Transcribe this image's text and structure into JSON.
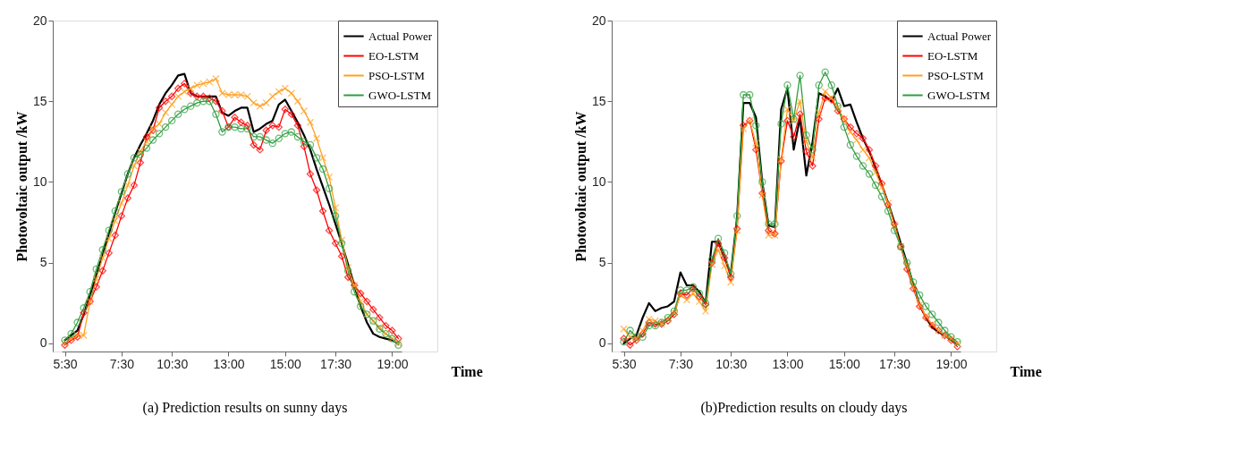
{
  "chart_data": [
    {
      "type": "line",
      "title": "(a) Prediction results on sunny days",
      "xlabel": "Time",
      "ylabel": "Photovoltaic output /kW",
      "categories": [
        "5:30",
        null,
        null,
        null,
        null,
        null,
        null,
        null,
        null,
        "7:30",
        null,
        null,
        null,
        null,
        null,
        null,
        null,
        "10:30",
        null,
        null,
        null,
        null,
        null,
        null,
        null,
        null,
        "13:00",
        null,
        null,
        null,
        null,
        null,
        null,
        null,
        null,
        "15:00",
        null,
        null,
        null,
        null,
        null,
        null,
        null,
        "17:30",
        null,
        null,
        null,
        null,
        null,
        null,
        null,
        null,
        "19:00",
        null
      ],
      "ylim": [
        -0.5,
        20
      ],
      "yticks": [
        0,
        5,
        10,
        15,
        20
      ],
      "grid": false,
      "legend": "top right",
      "line_style": "solid",
      "series": [
        {
          "name": "Actual Power",
          "color": "#000000",
          "marker": "none",
          "values": [
            0.2,
            0.5,
            0.8,
            1.8,
            3.0,
            4.2,
            5.5,
            6.8,
            8.1,
            9.3,
            10.5,
            11.5,
            12.3,
            13.0,
            13.8,
            14.8,
            15.5,
            16.0,
            16.6,
            16.7,
            15.5,
            15.3,
            15.3,
            15.3,
            15.3,
            14.3,
            14.1,
            14.4,
            14.6,
            14.6,
            13.1,
            13.3,
            13.6,
            13.8,
            14.8,
            15.1,
            14.4,
            13.7,
            12.9,
            12.0,
            10.8,
            9.7,
            8.6,
            7.4,
            6.2,
            4.9,
            3.6,
            2.3,
            1.3,
            0.6,
            0.4,
            0.3,
            0.2,
            0.0
          ]
        },
        {
          "name": "EO-LSTM",
          "color": "#ff0000",
          "marker": "diamond",
          "values": [
            -0.1,
            0.2,
            0.4,
            1.9,
            2.6,
            3.5,
            4.5,
            5.6,
            6.7,
            7.9,
            9.0,
            9.8,
            11.2,
            12.8,
            13.2,
            14.6,
            15.0,
            15.3,
            15.8,
            16.1,
            15.5,
            15.3,
            15.3,
            15.2,
            15.0,
            14.4,
            13.4,
            14.0,
            13.7,
            13.5,
            12.3,
            12.0,
            13.2,
            13.5,
            13.4,
            14.5,
            14.2,
            13.5,
            12.2,
            10.5,
            9.5,
            8.2,
            7.0,
            6.2,
            5.4,
            4.1,
            3.6,
            3.1,
            2.6,
            2.1,
            1.6,
            1.1,
            0.8,
            0.3
          ]
        },
        {
          "name": "PSO-LSTM",
          "color": "#ffa020",
          "marker": "cross",
          "values": [
            0.0,
            0.3,
            0.5,
            0.5,
            2.6,
            4.0,
            5.3,
            6.5,
            7.6,
            8.7,
            9.8,
            11.0,
            11.9,
            12.5,
            13.3,
            13.6,
            14.3,
            14.8,
            15.3,
            15.6,
            15.8,
            16.0,
            16.1,
            16.2,
            16.4,
            15.5,
            15.4,
            15.4,
            15.4,
            15.3,
            14.9,
            14.7,
            14.9,
            15.3,
            15.6,
            15.8,
            15.5,
            15.0,
            14.4,
            13.7,
            12.7,
            11.5,
            10.3,
            8.4,
            6.4,
            4.7,
            3.6,
            2.6,
            1.8,
            1.4,
            1.0,
            0.6,
            0.3,
            0.0
          ]
        },
        {
          "name": "GWO-LSTM",
          "color": "#2e9e3e",
          "marker": "circle",
          "values": [
            0.2,
            0.6,
            1.3,
            2.2,
            3.2,
            4.6,
            5.8,
            7.0,
            8.2,
            9.4,
            10.5,
            11.5,
            11.7,
            12.1,
            12.6,
            13.0,
            13.4,
            13.8,
            14.2,
            14.5,
            14.7,
            14.9,
            15.0,
            15.0,
            14.2,
            13.1,
            13.4,
            13.4,
            13.3,
            13.3,
            12.8,
            12.8,
            12.6,
            12.4,
            12.7,
            13.0,
            13.1,
            12.8,
            12.5,
            12.3,
            11.5,
            10.8,
            9.6,
            7.9,
            6.2,
            4.5,
            3.2,
            2.3,
            1.8,
            1.4,
            0.9,
            0.6,
            0.3,
            -0.1
          ]
        }
      ]
    },
    {
      "type": "line",
      "title": "(b)Prediction results on cloudy days",
      "xlabel": "Time",
      "ylabel": "Photovoltaic output /kW",
      "categories": [
        "5:30",
        null,
        null,
        null,
        null,
        null,
        null,
        null,
        null,
        "7:30",
        null,
        null,
        null,
        null,
        null,
        null,
        null,
        "10:30",
        null,
        null,
        null,
        null,
        null,
        null,
        null,
        null,
        "13:00",
        null,
        null,
        null,
        null,
        null,
        null,
        null,
        null,
        "15:00",
        null,
        null,
        null,
        null,
        null,
        null,
        null,
        "17:30",
        null,
        null,
        null,
        null,
        null,
        null,
        null,
        null,
        "19:00",
        null
      ],
      "ylim": [
        -0.5,
        20
      ],
      "yticks": [
        0,
        5,
        10,
        15,
        20
      ],
      "grid": false,
      "legend": "top right",
      "line_style": "solid",
      "series": [
        {
          "name": "Actual Power",
          "color": "#000000",
          "marker": "none",
          "values": [
            0.0,
            0.3,
            0.5,
            1.6,
            2.5,
            2.0,
            2.2,
            2.3,
            2.6,
            4.4,
            3.6,
            3.6,
            3.2,
            2.5,
            6.3,
            6.3,
            5.3,
            4.3,
            7.8,
            14.9,
            14.9,
            14.0,
            10.0,
            7.3,
            7.2,
            14.5,
            15.8,
            12.0,
            14.0,
            10.4,
            12.5,
            15.5,
            15.3,
            15.0,
            15.8,
            14.7,
            14.8,
            13.7,
            12.7,
            11.9,
            10.9,
            9.8,
            8.7,
            7.5,
            6.2,
            5.0,
            3.6,
            2.4,
            1.6,
            1.0,
            0.7,
            0.5,
            0.2,
            0.0
          ]
        },
        {
          "name": "EO-LSTM",
          "color": "#ff0000",
          "marker": "diamond",
          "values": [
            0.3,
            -0.1,
            0.2,
            0.6,
            1.3,
            1.2,
            1.2,
            1.4,
            1.8,
            3.1,
            3.0,
            3.4,
            2.9,
            2.4,
            5.0,
            6.2,
            5.3,
            4.1,
            7.1,
            13.5,
            13.8,
            12.0,
            9.3,
            7.0,
            6.8,
            11.3,
            13.8,
            12.8,
            14.2,
            11.9,
            11.0,
            13.9,
            15.2,
            15.1,
            14.4,
            13.9,
            13.4,
            13.0,
            12.7,
            12.0,
            11.0,
            9.9,
            8.6,
            7.4,
            6.0,
            4.6,
            3.4,
            2.3,
            1.6,
            1.1,
            0.8,
            0.5,
            0.2,
            -0.2
          ]
        },
        {
          "name": "PSO-LSTM",
          "color": "#ffa020",
          "marker": "cross",
          "values": [
            0.9,
            0.4,
            0.3,
            0.8,
            1.5,
            1.4,
            1.2,
            1.5,
            1.9,
            3.0,
            2.7,
            3.1,
            2.6,
            2.0,
            4.9,
            5.8,
            4.8,
            3.8,
            7.0,
            13.3,
            13.8,
            12.4,
            9.2,
            6.7,
            6.7,
            11.4,
            14.5,
            13.8,
            15.0,
            12.5,
            11.5,
            14.3,
            15.6,
            15.2,
            14.6,
            13.9,
            13.1,
            12.6,
            12.0,
            11.5,
            10.6,
            9.7,
            8.7,
            7.3,
            6.0,
            4.8,
            3.5,
            2.4,
            1.7,
            1.2,
            0.8,
            0.5,
            0.3,
            0.0
          ]
        },
        {
          "name": "GWO-LSTM",
          "color": "#2e9e3e",
          "marker": "circle",
          "values": [
            0.1,
            0.8,
            0.4,
            0.4,
            1.1,
            1.1,
            1.3,
            1.6,
            2.0,
            3.3,
            3.3,
            3.5,
            3.1,
            2.5,
            5.2,
            6.5,
            5.6,
            4.3,
            7.9,
            15.4,
            15.4,
            13.5,
            10.0,
            7.4,
            7.4,
            13.6,
            16.0,
            13.9,
            16.6,
            12.9,
            12.0,
            16.0,
            16.8,
            16.0,
            14.7,
            13.4,
            12.3,
            11.6,
            11.0,
            10.5,
            9.8,
            9.1,
            8.2,
            7.0,
            6.0,
            5.0,
            3.8,
            3.0,
            2.3,
            1.8,
            1.3,
            0.8,
            0.4,
            0.1
          ]
        }
      ]
    }
  ]
}
